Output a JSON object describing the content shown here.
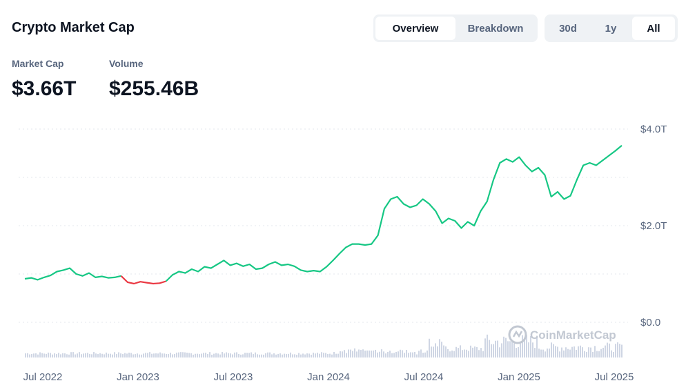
{
  "header": {
    "title": "Crypto Market Cap",
    "view_tabs": [
      "Overview",
      "Breakdown"
    ],
    "active_view": "Overview",
    "range_tabs": [
      "30d",
      "1y",
      "All"
    ],
    "active_range": "All"
  },
  "stats": {
    "market_cap_label": "Market Cap",
    "market_cap_value": "$3.66T",
    "volume_label": "Volume",
    "volume_value": "$255.46B"
  },
  "watermark": "CoinMarketCap",
  "colors": {
    "up": "#16c784",
    "down": "#ea3943",
    "volume": "#cfd6e4",
    "grid": "#e3e7ee",
    "text_muted": "#58667e"
  },
  "chart_data": {
    "type": "line",
    "title": "",
    "xlabel": "",
    "ylabel": "",
    "x_ticks": [
      "Jul 2022",
      "Jan 2023",
      "Jul 2023",
      "Jan 2024",
      "Jul 2024",
      "Jan 2025",
      "Jul 2025"
    ],
    "y_ticks": [
      "$4.0T",
      "$2.0T",
      "$0.0"
    ],
    "ylim": [
      0,
      4.0
    ],
    "y_unit": "T USD",
    "grid": true,
    "series": [
      {
        "values_trillions": [
          [
            0.9,
            0.92,
            0.88,
            0.93,
            0.97,
            1.05,
            1.08,
            1.12,
            1.0,
            0.96,
            1.02,
            0.93,
            0.95,
            0.92,
            0.93,
            0.96
          ],
          [
            0.96,
            0.83,
            0.8,
            0.84,
            0.82,
            0.8,
            0.81,
            0.85
          ],
          [
            0.85,
            0.98,
            1.05,
            1.02,
            1.1,
            1.05,
            1.15,
            1.12,
            1.2,
            1.28,
            1.18,
            1.22,
            1.16,
            1.2,
            1.1,
            1.12,
            1.2,
            1.25,
            1.18,
            1.2,
            1.16,
            1.08,
            1.05,
            1.07,
            1.05,
            1.15,
            1.28,
            1.42,
            1.55,
            1.62,
            1.62,
            1.6,
            1.62,
            1.8,
            2.35,
            2.55,
            2.6,
            2.45,
            2.38,
            2.42,
            2.55,
            2.45,
            2.3,
            2.05,
            2.15,
            2.1,
            1.95,
            2.08,
            2.0,
            2.3,
            2.5,
            2.95,
            3.3,
            3.38,
            3.32,
            3.42,
            3.25,
            3.12,
            3.2,
            3.05,
            2.6,
            2.7,
            2.55,
            2.62,
            2.95,
            3.25,
            3.3,
            3.25,
            3.35,
            3.45,
            3.55,
            3.66
          ]
        ]
      }
    ],
    "volume_visible": true,
    "legend": "none"
  }
}
